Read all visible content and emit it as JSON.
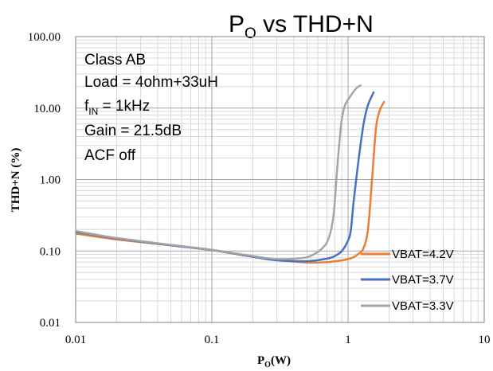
{
  "chart_data": {
    "type": "line",
    "title_main": "P",
    "title_sub": "O",
    "title_rest": " vs THD+N",
    "xlabel_main": "P",
    "xlabel_sub": "O",
    "xlabel_rest": "(W)",
    "ylabel": "THD+N (%)",
    "x_scale": "log",
    "y_scale": "log",
    "xlim": [
      0.01,
      10
    ],
    "ylim": [
      0.01,
      100
    ],
    "x_ticks": [
      "0.01",
      "0.1",
      "1",
      "10"
    ],
    "y_ticks": [
      "100.00",
      "10.00",
      "1.00",
      "0.10",
      "0.01"
    ],
    "grid": true,
    "legend_position": "lower-right",
    "annotations": {
      "class": "Class AB",
      "load": "Load = 4ohm+33uH",
      "fin_main": "f",
      "fin_sub": "IN",
      "fin_rest": " = 1kHz",
      "gain": "Gain = 21.5dB",
      "acf": "ACF off"
    },
    "series": [
      {
        "name": "VBAT=4.2V",
        "color": "#ED7D31",
        "x": [
          0.01,
          0.02,
          0.05,
          0.1,
          0.2,
          0.3,
          0.5,
          0.7,
          0.9,
          1.0,
          1.1,
          1.2,
          1.3,
          1.4,
          1.5,
          1.6,
          1.7,
          1.85
        ],
        "y": [
          0.175,
          0.145,
          0.12,
          0.103,
          0.083,
          0.075,
          0.069,
          0.07,
          0.074,
          0.077,
          0.082,
          0.092,
          0.11,
          0.2,
          1.0,
          5.0,
          9.0,
          12.5
        ]
      },
      {
        "name": "VBAT=3.7V",
        "color": "#4472C4",
        "x": [
          0.01,
          0.02,
          0.05,
          0.1,
          0.2,
          0.3,
          0.5,
          0.7,
          0.8,
          0.9,
          1.0,
          1.05,
          1.1,
          1.2,
          1.3,
          1.4,
          1.55
        ],
        "y": [
          0.185,
          0.15,
          0.12,
          0.103,
          0.083,
          0.074,
          0.072,
          0.078,
          0.085,
          0.1,
          0.14,
          0.2,
          0.5,
          2.0,
          6.0,
          11.0,
          17.0
        ]
      },
      {
        "name": "VBAT=3.3V",
        "color": "#A5A5A5",
        "x": [
          0.01,
          0.02,
          0.05,
          0.1,
          0.2,
          0.3,
          0.45,
          0.55,
          0.65,
          0.72,
          0.78,
          0.82,
          0.86,
          0.9,
          0.95,
          1.05,
          1.15,
          1.25
        ],
        "y": [
          0.19,
          0.152,
          0.122,
          0.104,
          0.085,
          0.077,
          0.079,
          0.088,
          0.11,
          0.15,
          0.3,
          1.0,
          3.0,
          7.0,
          11.0,
          15.0,
          19.0,
          21.0
        ]
      }
    ]
  }
}
